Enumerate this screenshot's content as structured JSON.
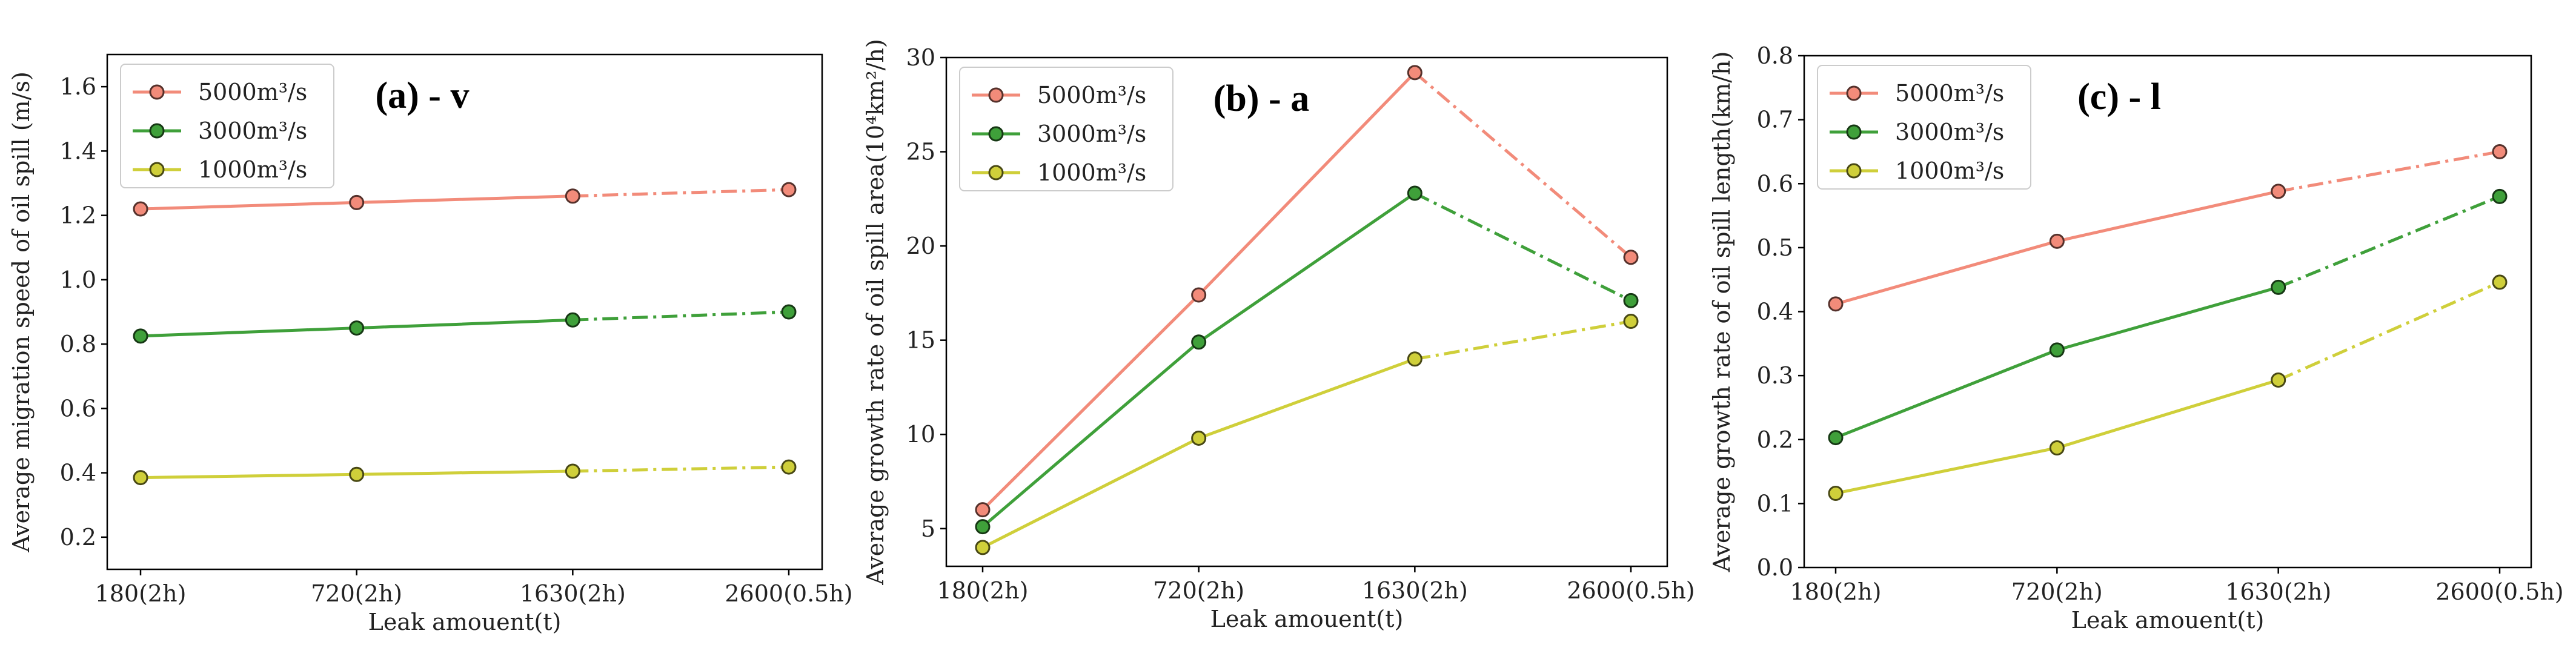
{
  "chart_data": [
    {
      "type": "line",
      "panel_title": "(a) - v",
      "xlabel": "Leak amouent(t)",
      "ylabel": "Average migration speed of oil spill (m/s)",
      "categories": [
        "180(2h)",
        "720(2h)",
        "1630(2h)",
        "2600(0.5h)"
      ],
      "ylim": [
        0.1,
        1.7
      ],
      "yticks": [
        "0.2",
        "0.4",
        "0.6",
        "0.8",
        "1.0",
        "1.2",
        "1.4",
        "1.6"
      ],
      "solid_until_index": 2,
      "legend_position": "top-left",
      "series": [
        {
          "name": "5000",
          "unit": "m³/s",
          "color": "#f28b7a",
          "values": [
            1.22,
            1.24,
            1.26,
            1.28
          ]
        },
        {
          "name": "3000",
          "unit": "m³/s",
          "color": "#3fa03a",
          "values": [
            0.825,
            0.85,
            0.875,
            0.9
          ]
        },
        {
          "name": "1000",
          "unit": "m³/s",
          "color": "#cfcf3a",
          "values": [
            0.385,
            0.395,
            0.405,
            0.418
          ]
        }
      ]
    },
    {
      "type": "line",
      "panel_title": "(b) - a",
      "xlabel": "Leak amouent(t)",
      "ylabel": "Average growth rate of oil spill area(10⁴km²/h)",
      "categories": [
        "180(2h)",
        "720(2h)",
        "1630(2h)",
        "2600(0.5h)"
      ],
      "ylim": [
        3.0,
        30.0
      ],
      "yticks": [
        "5",
        "10",
        "15",
        "20",
        "25",
        "30"
      ],
      "solid_until_index": 2,
      "legend_position": "top-left",
      "series": [
        {
          "name": "5000",
          "unit": "m³/s",
          "color": "#f28b7a",
          "values": [
            6.0,
            17.4,
            29.2,
            19.4
          ]
        },
        {
          "name": "3000",
          "unit": "m³/s",
          "color": "#3fa03a",
          "values": [
            5.1,
            14.9,
            22.8,
            17.1
          ]
        },
        {
          "name": "1000",
          "unit": "m³/s",
          "color": "#cfcf3a",
          "values": [
            4.0,
            9.8,
            14.0,
            16.0
          ]
        }
      ]
    },
    {
      "type": "line",
      "panel_title": "(c) - l",
      "xlabel": "Leak amouent(t)",
      "ylabel": "Average growth rate of oil spill length(km/h)",
      "categories": [
        "180(2h)",
        "720(2h)",
        "1630(2h)",
        "2600(0.5h)"
      ],
      "ylim": [
        0.0,
        0.8
      ],
      "yticks": [
        "0.0",
        "0.1",
        "0.2",
        "0.3",
        "0.4",
        "0.5",
        "0.6",
        "0.7",
        "0.8"
      ],
      "solid_until_index": 2,
      "legend_position": "top-left",
      "series": [
        {
          "name": "5000",
          "unit": "m³/s",
          "color": "#f28b7a",
          "values": [
            0.412,
            0.51,
            0.588,
            0.65
          ]
        },
        {
          "name": "3000",
          "unit": "m³/s",
          "color": "#3fa03a",
          "values": [
            0.203,
            0.34,
            0.438,
            0.58
          ]
        },
        {
          "name": "1000",
          "unit": "m³/s",
          "color": "#cfcf3a",
          "values": [
            0.116,
            0.187,
            0.293,
            0.446
          ]
        }
      ]
    }
  ]
}
